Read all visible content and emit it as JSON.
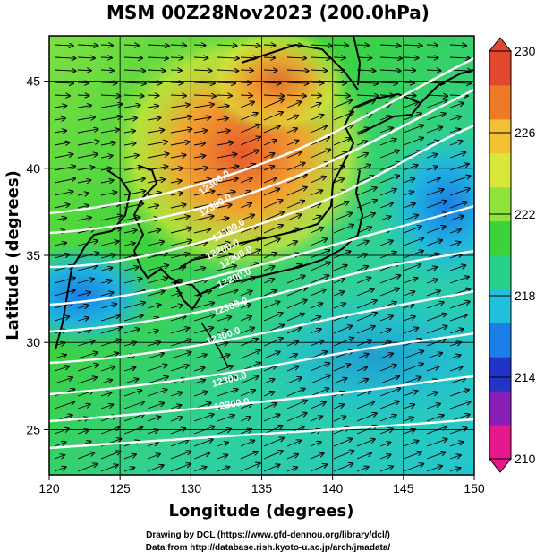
{
  "title": "MSM 00Z28Nov2023 (200.0hPa)",
  "x_axis": {
    "label": "Longitude (degrees)",
    "ticks": [
      {
        "value": 120,
        "label": "120"
      },
      {
        "value": 125,
        "label": "125"
      },
      {
        "value": 130,
        "label": "130"
      },
      {
        "value": 135,
        "label": "135"
      },
      {
        "value": 140,
        "label": "140"
      },
      {
        "value": 145,
        "label": "145"
      },
      {
        "value": 150,
        "label": "150"
      }
    ],
    "range": [
      120,
      150
    ]
  },
  "y_axis": {
    "label": "Latitude  (degrees)",
    "ticks": [
      {
        "value": 25,
        "label": "25"
      },
      {
        "value": 30,
        "label": "30"
      },
      {
        "value": 35,
        "label": "35"
      },
      {
        "value": 40,
        "label": "40"
      },
      {
        "value": 45,
        "label": "45"
      }
    ],
    "range": [
      22.4,
      47.6
    ]
  },
  "colorbar": {
    "range": [
      210,
      230
    ],
    "ticks": [
      {
        "value": 210,
        "label": "210"
      },
      {
        "value": 214,
        "label": "214"
      },
      {
        "value": 218,
        "label": "218"
      },
      {
        "value": 222,
        "label": "222"
      },
      {
        "value": 226,
        "label": "226"
      },
      {
        "value": 230,
        "label": "230"
      }
    ],
    "colors": [
      "#e6198c",
      "#8a1fb8",
      "#2233c8",
      "#1a7ee6",
      "#20c0dc",
      "#28d08c",
      "#3cd23c",
      "#8ee43a",
      "#d8e83a",
      "#f2c030",
      "#ec7a26",
      "#e04830"
    ]
  },
  "contour_labels": [
    "12300.0",
    "12300.0",
    "12200.0",
    "12200.0",
    "12300.0",
    "12300.0",
    "12300.0",
    "12300.0",
    "12300.0",
    "12300.0"
  ],
  "credits": {
    "line1": "Drawing by DCL (https://www.gfd-dennou.org/library/dcl/)",
    "line2": "Data from http://database.rish.kyoto-u.ac.jp/arch/jmadata/"
  }
}
